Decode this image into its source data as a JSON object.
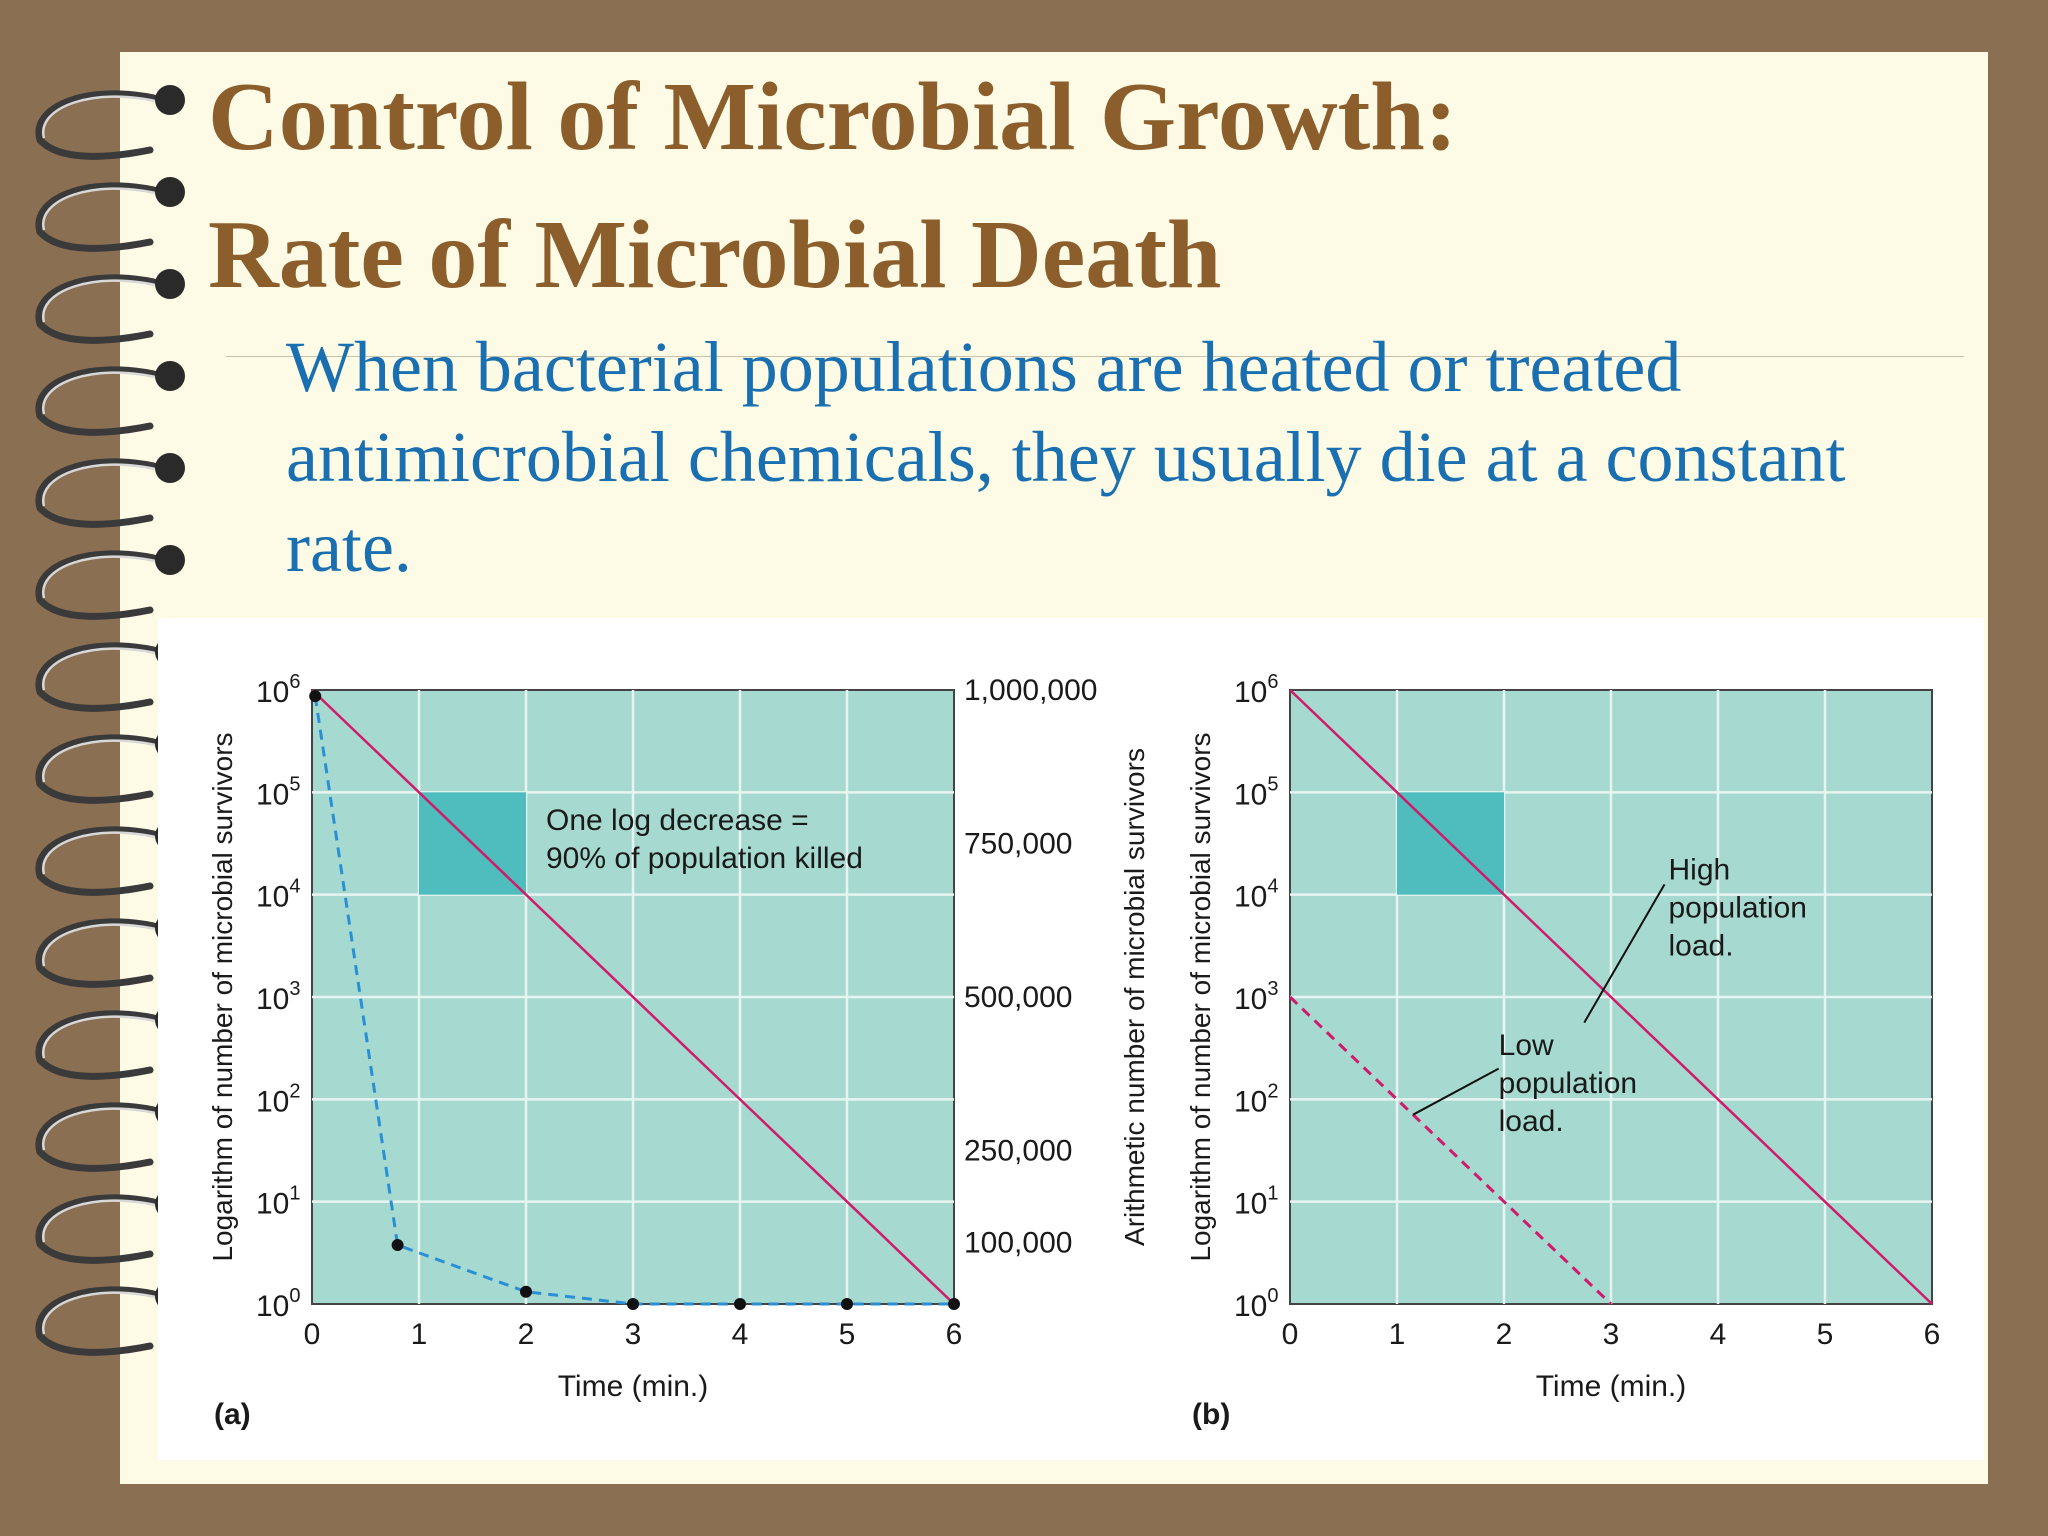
{
  "slide": {
    "title_line1": "Control of Microbial Growth:",
    "title_line2": "Rate of Microbial Death",
    "body": "When bacterial populations are heated or treated antimicrobial chemicals, they usually die at a constant rate."
  },
  "colors": {
    "background": "#8b6f52",
    "paper": "#fdfbe6",
    "title": "#8b5e2b",
    "body_text": "#1a6fb0",
    "plot_fill": "#a6d9cf",
    "grid": "#e8f4f1",
    "highlight": "#4fbcbe",
    "log_line": "#d01a6a",
    "arithmetic_line": "#2b8fd6"
  },
  "chart_data": [
    {
      "type": "line",
      "panel_label": "(a)",
      "xlabel": "Time (min.)",
      "ylabel": "Logarithm of number of microbial survivors",
      "y2label": "Arithmetic number of microbial survivors",
      "xlim": [
        0,
        6
      ],
      "ylim": [
        0,
        6
      ],
      "y_scale": "log",
      "x_ticks": [
        "0",
        "1",
        "2",
        "3",
        "4",
        "5",
        "6"
      ],
      "y_ticks": [
        {
          "base": "10",
          "exp": "0"
        },
        {
          "base": "10",
          "exp": "1"
        },
        {
          "base": "10",
          "exp": "2"
        },
        {
          "base": "10",
          "exp": "3"
        },
        {
          "base": "10",
          "exp": "4"
        },
        {
          "base": "10",
          "exp": "5"
        },
        {
          "base": "10",
          "exp": "6"
        }
      ],
      "y2_ticks": [
        {
          "label": "1,000,000",
          "value": 1000000
        },
        {
          "label": "750,000",
          "value": 750000
        },
        {
          "label": "500,000",
          "value": 500000
        },
        {
          "label": "250,000",
          "value": 250000
        },
        {
          "label": "100,000",
          "value": 100000
        }
      ],
      "y2lim": [
        0,
        1000000
      ],
      "grid": true,
      "series": [
        {
          "style": "solid",
          "color": "#d01a6a",
          "x": [
            0,
            6
          ],
          "y": [
            1000000,
            1
          ]
        },
        {
          "style": "dashed",
          "color": "#2b8fd6",
          "markers": true,
          "x": [
            0.03,
            0.8,
            2,
            3,
            4,
            5,
            6
          ],
          "y2": [
            990000,
            96000,
            20000,
            0,
            0,
            0,
            0
          ]
        }
      ],
      "highlight_box": {
        "x": [
          1,
          2
        ],
        "y": [
          10000,
          100000
        ]
      },
      "annotations": [
        "One log decrease =",
        "90% of population killed"
      ]
    },
    {
      "type": "line",
      "panel_label": "(b)",
      "xlabel": "Time (min.)",
      "ylabel": "Logarithm of number of microbial survivors",
      "xlim": [
        0,
        6
      ],
      "ylim": [
        0,
        6
      ],
      "y_scale": "log",
      "x_ticks": [
        "0",
        "1",
        "2",
        "3",
        "4",
        "5",
        "6"
      ],
      "y_ticks": [
        {
          "base": "10",
          "exp": "0"
        },
        {
          "base": "10",
          "exp": "1"
        },
        {
          "base": "10",
          "exp": "2"
        },
        {
          "base": "10",
          "exp": "3"
        },
        {
          "base": "10",
          "exp": "4"
        },
        {
          "base": "10",
          "exp": "5"
        },
        {
          "base": "10",
          "exp": "6"
        }
      ],
      "grid": true,
      "series": [
        {
          "name_lines": [
            "High",
            "population",
            "load."
          ],
          "style": "solid",
          "color": "#d01a6a",
          "x": [
            0,
            6
          ],
          "y": [
            1000000,
            1
          ]
        },
        {
          "name_lines": [
            "Low",
            "population",
            "load."
          ],
          "style": "dashed",
          "color": "#d01a6a",
          "x": [
            0,
            3
          ],
          "y": [
            1000,
            1
          ]
        }
      ],
      "highlight_box": {
        "x": [
          1,
          2
        ],
        "y": [
          10000,
          100000
        ]
      }
    }
  ]
}
